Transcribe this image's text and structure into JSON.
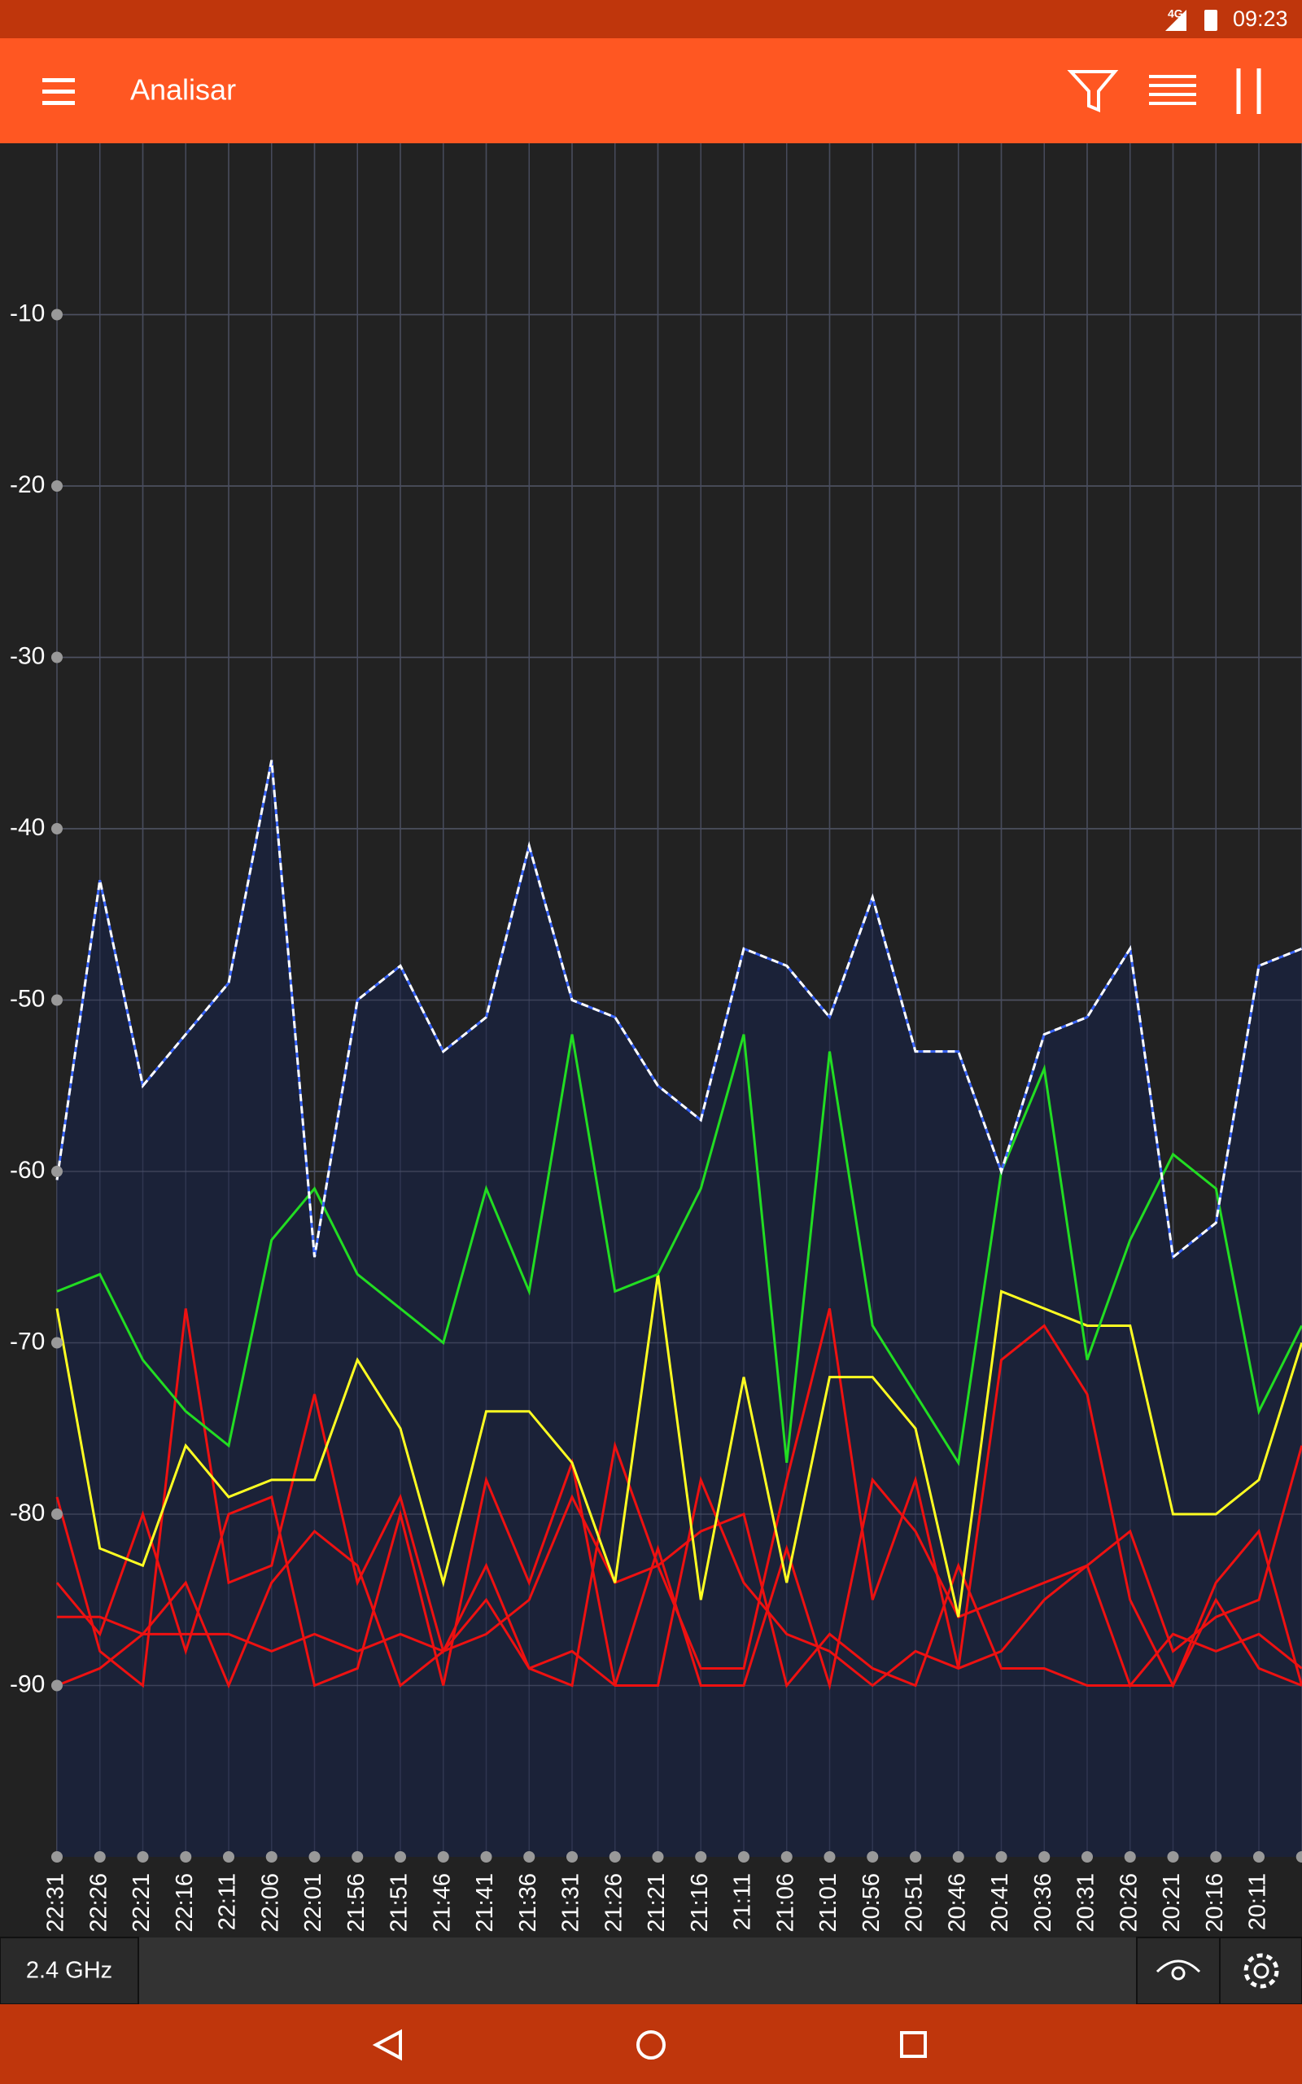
{
  "status_bar": {
    "network": "4G",
    "time": "09:23"
  },
  "app_bar": {
    "title": "Analisar"
  },
  "bottom_bar": {
    "band": "2.4 GHz"
  },
  "chart_data": {
    "type": "line",
    "categories": [
      "22:31",
      "22:26",
      "22:21",
      "22:16",
      "22:11",
      "22:06",
      "22:01",
      "21:56",
      "21:51",
      "21:46",
      "21:41",
      "21:36",
      "21:31",
      "21:26",
      "21:21",
      "21:16",
      "21:11",
      "21:06",
      "21:01",
      "20:56",
      "20:51",
      "20:46",
      "20:41",
      "20:36",
      "20:31",
      "20:26",
      "20:21",
      "20:16",
      "20:11",
      null
    ],
    "ylim": [
      -100,
      0
    ],
    "yticks": [
      -10,
      -20,
      -30,
      -40,
      -50,
      -60,
      -70,
      -80,
      -90
    ],
    "grid": true,
    "series": [
      {
        "color": "#ffffff",
        "dashed": true,
        "area_color": "#1b2238",
        "values": [
          -60.5,
          -43,
          -55,
          -52,
          -49,
          -36,
          -65,
          -50,
          -48,
          -53,
          -51,
          -41,
          -50,
          -51,
          -55,
          -57,
          -47,
          -48,
          -51,
          -44,
          -53,
          -53,
          -60,
          -52,
          -51,
          -47,
          -65,
          -63,
          -48,
          -47
        ]
      },
      {
        "color": "#22dd22",
        "values": [
          -67,
          -66,
          -71,
          -74,
          -76,
          -64,
          -61,
          -66,
          -68,
          -70,
          -61,
          -67,
          -52,
          -67,
          -66,
          -61,
          -52,
          -77,
          -53,
          -69,
          -73,
          -77,
          -60,
          -54,
          -71,
          -64,
          -59,
          -61,
          -74,
          -69
        ]
      },
      {
        "color": "#ffff22",
        "values": [
          -68,
          -82,
          -83,
          -76,
          -79,
          -78,
          -78,
          -71,
          -75,
          -84,
          -74,
          -74,
          -77,
          -84,
          -66,
          -85,
          -72,
          -84,
          -72,
          -72,
          -75,
          -86,
          -67,
          -68,
          -69,
          -69,
          -80,
          -80,
          -78,
          -70
        ]
      },
      {
        "color": "#ee1111",
        "values": [
          -79,
          -88,
          -90,
          -68,
          -84,
          -83,
          -73,
          -84,
          -79,
          -88,
          -83,
          -89,
          -90,
          -76,
          -83,
          -89,
          -89,
          -78,
          -68,
          -85,
          -78,
          -89,
          -71,
          -69,
          -73,
          -85,
          -90,
          -84,
          -81,
          -90
        ]
      },
      {
        "color": "#ee1111",
        "values": [
          -84,
          -87,
          -80,
          -88,
          -80,
          -79,
          -90,
          -89,
          -80,
          -90,
          -78,
          -84,
          -77,
          -90,
          -82,
          -90,
          -90,
          -82,
          -90,
          -78,
          -81,
          -86,
          -85,
          -84,
          -83,
          -81,
          -88,
          -86,
          -85,
          -76
        ]
      },
      {
        "color": "#ee1111",
        "values": [
          -86,
          -86,
          -87,
          -84,
          -90,
          -84,
          -81,
          -83,
          -90,
          -88,
          -85,
          -89,
          -88,
          -90,
          -90,
          -78,
          -84,
          -87,
          -88,
          -90,
          -88,
          -89,
          -88,
          -85,
          -83,
          -90,
          -87,
          -88,
          -87,
          -89
        ]
      },
      {
        "color": "#ee1111",
        "values": [
          -90,
          -89,
          -87,
          -87,
          -87,
          -88,
          -87,
          -88,
          -87,
          -88,
          -87,
          -85,
          -79,
          -84,
          -83,
          -81,
          -80,
          -90,
          -87,
          -89,
          -90,
          -83,
          -89,
          -89,
          -90,
          -90,
          -90,
          -85,
          -89,
          -90
        ]
      }
    ]
  }
}
